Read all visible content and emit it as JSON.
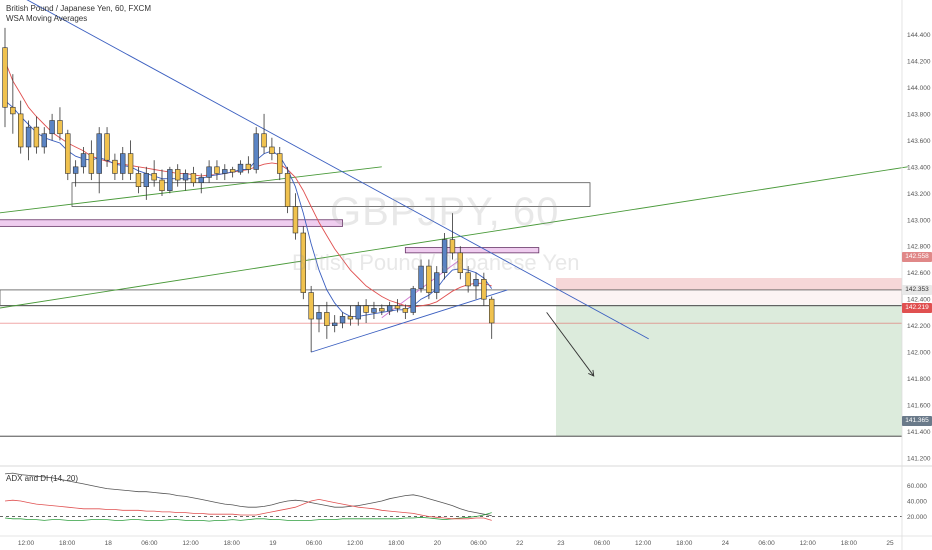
{
  "header": {
    "title": "British Pound / Japanese Yen, 60, FXCM",
    "indicator": "WSA Moving Averages"
  },
  "watermark": {
    "symbol": "GBPJPY, 60",
    "name": "British Pound / Japanese Yen"
  },
  "price_tags": {
    "stop": "142.558",
    "entry": "142.353",
    "current": "142.219",
    "target": "141.365"
  },
  "colors": {
    "bull": "#5b84c4",
    "bear": "#f0c24f",
    "wick": "#333333",
    "stop_zone": "#f6d7d8",
    "target_zone": "#dcebdc",
    "trend_blue": "#3b5fc0",
    "trend_green": "#4a9a3a",
    "ma_red": "#e05050",
    "ma_blue": "#3b5fc0",
    "pink": "#d07ad0"
  },
  "chart_data": [
    {
      "type": "candlestick",
      "title": "British Pound / Japanese Yen, 60, FXCM",
      "ylim": [
        141.2,
        144.6
      ],
      "y_ticks": [
        "144.400",
        "144.200",
        "144.000",
        "143.800",
        "143.600",
        "143.400",
        "143.200",
        "143.000",
        "142.800",
        "142.600",
        "142.400",
        "142.200",
        "142.000",
        "141.800",
        "141.600",
        "141.400",
        "141.200"
      ],
      "x_ticks": [
        "12:00",
        "18:00",
        "18",
        "06:00",
        "12:00",
        "18:00",
        "19",
        "06:00",
        "12:00",
        "18:00",
        "20",
        "06:00",
        "22",
        "23",
        "06:00",
        "12:00",
        "18:00",
        "24",
        "06:00",
        "12:00",
        "18:00",
        "25"
      ],
      "candles": [
        [
          144.3,
          144.45,
          143.7,
          143.85
        ],
        [
          143.85,
          144.1,
          143.65,
          143.8
        ],
        [
          143.8,
          143.9,
          143.5,
          143.55
        ],
        [
          143.55,
          143.75,
          143.45,
          143.7
        ],
        [
          143.7,
          143.78,
          143.5,
          143.55
        ],
        [
          143.55,
          143.7,
          143.5,
          143.65
        ],
        [
          143.65,
          143.8,
          143.6,
          143.75
        ],
        [
          143.75,
          143.85,
          143.6,
          143.65
        ],
        [
          143.65,
          143.68,
          143.3,
          143.35
        ],
        [
          143.35,
          143.45,
          143.25,
          143.4
        ],
        [
          143.4,
          143.55,
          143.35,
          143.5
        ],
        [
          143.5,
          143.6,
          143.3,
          143.35
        ],
        [
          143.35,
          143.7,
          143.2,
          143.65
        ],
        [
          143.65,
          143.7,
          143.4,
          143.45
        ],
        [
          143.45,
          143.5,
          143.3,
          143.35
        ],
        [
          143.35,
          143.55,
          143.3,
          143.5
        ],
        [
          143.5,
          143.6,
          143.3,
          143.35
        ],
        [
          143.35,
          143.4,
          143.2,
          143.25
        ],
        [
          143.25,
          143.4,
          143.15,
          143.35
        ],
        [
          143.35,
          143.45,
          143.25,
          143.3
        ],
        [
          143.3,
          143.38,
          143.18,
          143.22
        ],
        [
          143.22,
          143.4,
          143.2,
          143.38
        ],
        [
          143.38,
          143.42,
          143.25,
          143.3
        ],
        [
          143.3,
          143.38,
          143.22,
          143.35
        ],
        [
          143.35,
          143.4,
          143.25,
          143.28
        ],
        [
          143.28,
          143.35,
          143.2,
          143.32
        ],
        [
          143.32,
          143.45,
          143.28,
          143.4
        ],
        [
          143.4,
          143.45,
          143.3,
          143.35
        ],
        [
          143.35,
          143.42,
          143.3,
          143.38
        ],
        [
          143.38,
          143.4,
          143.32,
          143.36
        ],
        [
          143.36,
          143.45,
          143.34,
          143.42
        ],
        [
          143.42,
          143.48,
          143.35,
          143.38
        ],
        [
          143.38,
          143.7,
          143.35,
          143.65
        ],
        [
          143.65,
          143.8,
          143.5,
          143.55
        ],
        [
          143.55,
          143.62,
          143.45,
          143.5
        ],
        [
          143.5,
          143.55,
          143.3,
          143.35
        ],
        [
          143.35,
          143.4,
          143.05,
          143.1
        ],
        [
          143.1,
          143.2,
          142.85,
          142.9
        ],
        [
          142.9,
          142.95,
          142.4,
          142.45
        ],
        [
          142.45,
          142.5,
          142.0,
          142.25
        ],
        [
          142.25,
          142.35,
          142.15,
          142.3
        ],
        [
          142.3,
          142.38,
          142.1,
          142.2
        ],
        [
          142.2,
          142.28,
          142.15,
          142.22
        ],
        [
          142.22,
          142.3,
          142.18,
          142.27
        ],
        [
          142.27,
          142.35,
          142.2,
          142.25
        ],
        [
          142.25,
          142.38,
          142.2,
          142.35
        ],
        [
          142.35,
          142.4,
          142.22,
          142.3
        ],
        [
          142.3,
          142.38,
          142.25,
          142.33
        ],
        [
          142.33,
          142.36,
          142.28,
          142.31
        ],
        [
          142.31,
          142.38,
          142.28,
          142.35
        ],
        [
          142.35,
          142.4,
          142.3,
          142.33
        ],
        [
          142.33,
          142.36,
          142.25,
          142.3
        ],
        [
          142.3,
          142.5,
          142.28,
          142.48
        ],
        [
          142.48,
          142.7,
          142.45,
          142.65
        ],
        [
          142.65,
          142.7,
          142.4,
          142.45
        ],
        [
          142.45,
          142.65,
          142.4,
          142.6
        ],
        [
          142.6,
          142.9,
          142.55,
          142.85
        ],
        [
          142.85,
          143.05,
          142.7,
          142.75
        ],
        [
          142.75,
          142.8,
          142.55,
          142.6
        ],
        [
          142.6,
          142.65,
          142.45,
          142.5
        ],
        [
          142.5,
          142.6,
          142.4,
          142.55
        ],
        [
          142.55,
          142.6,
          142.35,
          142.4
        ],
        [
          142.4,
          142.42,
          142.1,
          142.22
        ]
      ],
      "ma_red": [
        144.2,
        144.05,
        143.95,
        143.85,
        143.78,
        143.72,
        143.66,
        143.62,
        143.58,
        143.55,
        143.52,
        143.48,
        143.46,
        143.44,
        143.43,
        143.42,
        143.41,
        143.4,
        143.39,
        143.38,
        143.37,
        143.36,
        143.35,
        143.35,
        143.34,
        143.33,
        143.34,
        143.34,
        143.35,
        143.36,
        143.37,
        143.38,
        143.4,
        143.42,
        143.43,
        143.42,
        143.38,
        143.32,
        143.22,
        143.1,
        142.98,
        142.88,
        142.78,
        142.7,
        142.62,
        142.56,
        142.5,
        142.46,
        142.42,
        142.39,
        142.37,
        142.35,
        142.34,
        142.35,
        142.36,
        142.38,
        142.42,
        142.46,
        142.49,
        142.51,
        142.52,
        142.52,
        142.5
      ],
      "ma_blue": [
        143.9,
        143.85,
        143.78,
        143.72,
        143.66,
        143.62,
        143.6,
        143.58,
        143.52,
        143.48,
        143.46,
        143.45,
        143.47,
        143.45,
        143.42,
        143.41,
        143.4,
        143.37,
        143.35,
        143.33,
        143.31,
        143.31,
        143.31,
        143.31,
        143.31,
        143.31,
        143.33,
        143.34,
        143.35,
        143.36,
        143.38,
        143.38,
        143.45,
        143.5,
        143.52,
        143.48,
        143.38,
        143.25,
        143.05,
        142.82,
        142.62,
        142.47,
        142.37,
        142.3,
        142.27,
        142.27,
        142.28,
        142.29,
        142.3,
        142.31,
        142.32,
        142.32,
        142.35,
        142.4,
        142.43,
        142.48,
        142.56,
        142.62,
        142.63,
        142.62,
        142.6,
        142.56,
        142.48
      ],
      "drawings": {
        "stop_zone": [
          142.36,
          142.56
        ],
        "target_zone": [
          141.365,
          142.36
        ],
        "entry_line": 142.353,
        "current_line": 142.219,
        "target_line": 141.365,
        "upper_trend": [
          [
            -20,
            145.4
          ],
          [
            82,
            142.1
          ]
        ],
        "lower_trend": [
          [
            39,
            142.0
          ],
          [
            64,
            142.47
          ]
        ],
        "green_trend_a": [
          [
            -1,
            143.05
          ],
          [
            48,
            143.4
          ]
        ],
        "green_trend_b": [
          [
            -1,
            142.33
          ],
          [
            115,
            143.4
          ]
        ],
        "white_zones": [
          [
            143.1,
            143.28
          ],
          [
            142.35,
            142.47
          ]
        ],
        "pink_boxes": [
          [
            -7,
            43,
            142.95,
            143.0
          ],
          [
            51,
            68,
            142.75,
            142.79
          ]
        ],
        "pink_line": [
          [
            48,
            142.26
          ],
          [
            58,
            142.7
          ]
        ],
        "arrow": [
          [
            69,
            142.3
          ],
          [
            75,
            141.82
          ]
        ]
      }
    },
    {
      "type": "line",
      "title": "ADX and DI (14, 20)",
      "ylim": [
        0,
        80
      ],
      "y_ticks": [
        "60.000",
        "40.000",
        "20.000"
      ],
      "reference_line": 20,
      "series": [
        {
          "name": "ADX",
          "color": "#555555",
          "values": [
            75,
            76,
            74,
            73,
            72,
            71,
            70,
            68,
            66,
            64,
            62,
            60,
            58,
            56,
            55,
            54,
            53,
            52,
            52,
            51,
            50,
            49,
            47,
            46,
            44,
            42,
            40,
            38,
            36,
            35,
            33,
            32,
            32,
            33,
            35,
            38,
            40,
            41,
            40,
            38,
            36,
            34,
            32,
            32,
            33,
            34,
            36,
            38,
            40,
            43,
            45,
            47,
            48,
            46,
            43,
            40,
            37,
            34,
            30,
            27,
            25,
            23,
            21
          ]
        },
        {
          "name": "+DI",
          "color": "#2e9e3e",
          "values": [
            18,
            17,
            17,
            16,
            16,
            15,
            16,
            16,
            15,
            15,
            15,
            16,
            16,
            16,
            15,
            15,
            16,
            16,
            15,
            15,
            15,
            16,
            16,
            15,
            15,
            15,
            14,
            15,
            15,
            16,
            15,
            16,
            17,
            17,
            16,
            16,
            15,
            15,
            15,
            15,
            16,
            16,
            16,
            17,
            17,
            17,
            17,
            17,
            17,
            17,
            17,
            18,
            18,
            19,
            18,
            17,
            16,
            17,
            18,
            19,
            20,
            22,
            25
          ]
        },
        {
          "name": "-DI",
          "color": "#e05050",
          "values": [
            40,
            41,
            40,
            38,
            36,
            35,
            34,
            33,
            32,
            31,
            30,
            30,
            30,
            29,
            29,
            28,
            28,
            28,
            27,
            27,
            26,
            26,
            25,
            25,
            24,
            24,
            23,
            23,
            23,
            23,
            22,
            22,
            22,
            24,
            26,
            28,
            30,
            32,
            36,
            40,
            42,
            40,
            38,
            36,
            34,
            32,
            31,
            30,
            28,
            27,
            26,
            25,
            24,
            22,
            20,
            19,
            18,
            17,
            17,
            17,
            18,
            18,
            15
          ]
        }
      ]
    }
  ]
}
